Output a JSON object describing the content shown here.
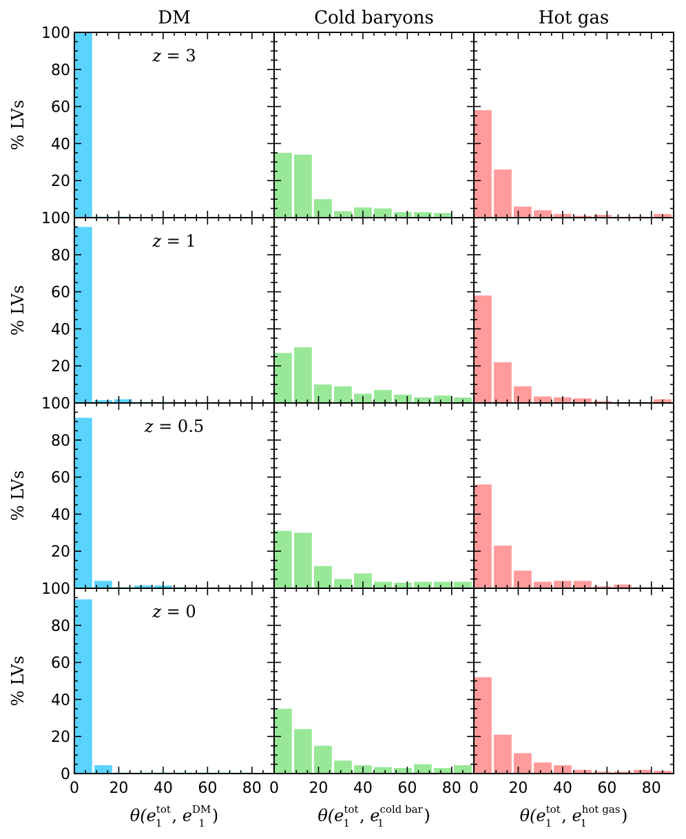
{
  "chart_data": {
    "type": "bar",
    "columns": [
      {
        "title": "DM",
        "color": "#5bd3ff",
        "xlabel": {
          "base": "θ(",
          "v1": "e",
          "sup1": "tot",
          "sub1": "1",
          "comma": ", ",
          "v2": "e",
          "sup2": "DM",
          "sub2": "1",
          "end": ")"
        }
      },
      {
        "title": "Cold baryons",
        "color": "#98e898",
        "xlabel": {
          "base": "θ(",
          "v1": "e",
          "sup1": "tot",
          "sub1": "1",
          "comma": ", ",
          "v2": "e",
          "sup2": "cold bar",
          "sub2": "1",
          "end": ")"
        }
      },
      {
        "title": "Hot gas",
        "color": "#ff9b9b",
        "xlabel": {
          "base": "θ(",
          "v1": "e",
          "sup1": "tot",
          "sub1": "1",
          "comma": ", ",
          "v2": "e",
          "sup2": "hot gas",
          "sub2": "1",
          "end": ")"
        }
      }
    ],
    "rows": [
      {
        "z_label": {
          "var": "z",
          "eq": " = ",
          "val": "3"
        }
      },
      {
        "z_label": {
          "var": "z",
          "eq": " = ",
          "val": "1"
        }
      },
      {
        "z_label": {
          "var": "z",
          "eq": " = ",
          "val": "0.5"
        }
      },
      {
        "z_label": {
          "var": "z",
          "eq": " = ",
          "val": "0"
        }
      }
    ],
    "ylabel": "% LVs",
    "xlim": [
      0,
      90
    ],
    "ylim": [
      0,
      100
    ],
    "bin_width": 9,
    "bar_width": 8,
    "xticks": [
      "0",
      "20",
      "40",
      "60",
      "80"
    ],
    "yticks": [
      "0",
      "20",
      "40",
      "60",
      "80",
      "100"
    ],
    "panels": [
      [
        [
          100,
          0.5,
          0.5,
          0.3,
          0.3,
          0.3,
          0.2,
          0.2,
          0.2,
          0.2
        ],
        [
          35,
          34,
          10,
          3.5,
          5.5,
          5,
          3,
          3,
          2.5,
          0
        ],
        [
          58,
          26,
          6,
          4,
          2,
          1,
          1.5,
          0.5,
          0.5,
          2
        ]
      ],
      [
        [
          95,
          1.5,
          2,
          0.5,
          0.5,
          0.3,
          0.3,
          0.3,
          0.3,
          0.3
        ],
        [
          27,
          30,
          10,
          9,
          5,
          7,
          4.5,
          3,
          4,
          3
        ],
        [
          58,
          22,
          9,
          3.5,
          3,
          2.5,
          1,
          0.5,
          0.5,
          2
        ]
      ],
      [
        [
          92,
          4,
          0.5,
          1.5,
          1.5,
          0.5,
          0.3,
          0.3,
          0.3,
          0.3
        ],
        [
          31,
          30,
          12,
          5,
          8,
          3.5,
          3,
          3.5,
          3.5,
          3.5
        ],
        [
          56,
          23,
          9.5,
          3.5,
          4,
          4,
          1,
          2,
          0.5,
          0.5
        ]
      ],
      [
        [
          94,
          4.5,
          0.5,
          0.5,
          0.5,
          0.5,
          0.5,
          0.5,
          0.5,
          0.3
        ],
        [
          35,
          24,
          15,
          7,
          4.5,
          3.5,
          3,
          5,
          3,
          4.5
        ],
        [
          52,
          21,
          11,
          6,
          4.5,
          2,
          1,
          1,
          2,
          1.5
        ]
      ]
    ]
  }
}
